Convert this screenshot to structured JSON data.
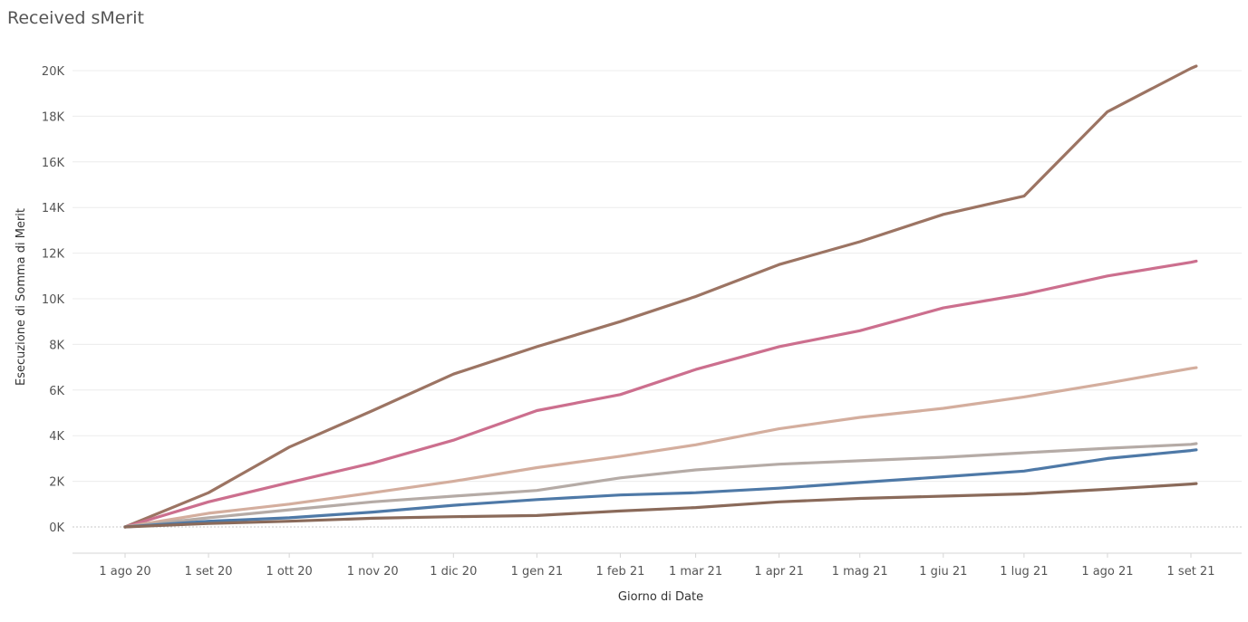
{
  "chart_data": {
    "type": "line",
    "title": "Received sMerit",
    "xlabel": "Giorno di Date",
    "ylabel": "Esecuzione di Somma di Merit",
    "ylim": [
      0,
      20000
    ],
    "grid": true,
    "x_ticks": [
      "1 ago 20",
      "1 set 20",
      "1 ott 20",
      "1 nov 20",
      "1 dic 20",
      "1 gen 21",
      "1 feb 21",
      "1 mar 21",
      "1 apr 21",
      "1 mag 21",
      "1 giu 21",
      "1 lug 21",
      "1 ago 21",
      "1 set 21"
    ],
    "y_ticks": [
      "0K",
      "2K",
      "4K",
      "6K",
      "8K",
      "10K",
      "12K",
      "14K",
      "16K",
      "18K",
      "20K"
    ],
    "x": [
      "2020-08-01",
      "2020-09-01",
      "2020-10-01",
      "2020-11-01",
      "2020-12-01",
      "2021-01-01",
      "2021-02-01",
      "2021-03-01",
      "2021-04-01",
      "2021-05-01",
      "2021-06-01",
      "2021-07-01",
      "2021-08-01",
      "2021-09-01",
      "2021-09-03"
    ],
    "series": [
      {
        "color": "#9c7463",
        "values": [
          0,
          1500,
          3500,
          5100,
          6700,
          7900,
          9000,
          10100,
          11500,
          12500,
          13700,
          14500,
          18200,
          20100,
          20200
        ]
      },
      {
        "color": "#cc6f8e",
        "values": [
          0,
          1100,
          1950,
          2800,
          3800,
          5100,
          5800,
          6900,
          7900,
          8600,
          9600,
          10200,
          11000,
          11600,
          11650
        ]
      },
      {
        "color": "#d4ae9e",
        "values": [
          0,
          600,
          1000,
          1500,
          2000,
          2600,
          3100,
          3600,
          4300,
          4800,
          5200,
          5700,
          6300,
          6950,
          6980
        ]
      },
      {
        "color": "#b5aba6",
        "values": [
          0,
          400,
          750,
          1100,
          1350,
          1600,
          2150,
          2500,
          2750,
          2900,
          3050,
          3250,
          3450,
          3620,
          3650
        ]
      },
      {
        "color": "#4e79a7",
        "values": [
          0,
          250,
          400,
          650,
          950,
          1200,
          1400,
          1500,
          1700,
          1950,
          2200,
          2450,
          3000,
          3350,
          3380
        ]
      },
      {
        "color": "#8a6a5a",
        "values": [
          0,
          150,
          250,
          380,
          450,
          500,
          700,
          850,
          1100,
          1250,
          1350,
          1450,
          1650,
          1880,
          1900
        ]
      }
    ]
  }
}
